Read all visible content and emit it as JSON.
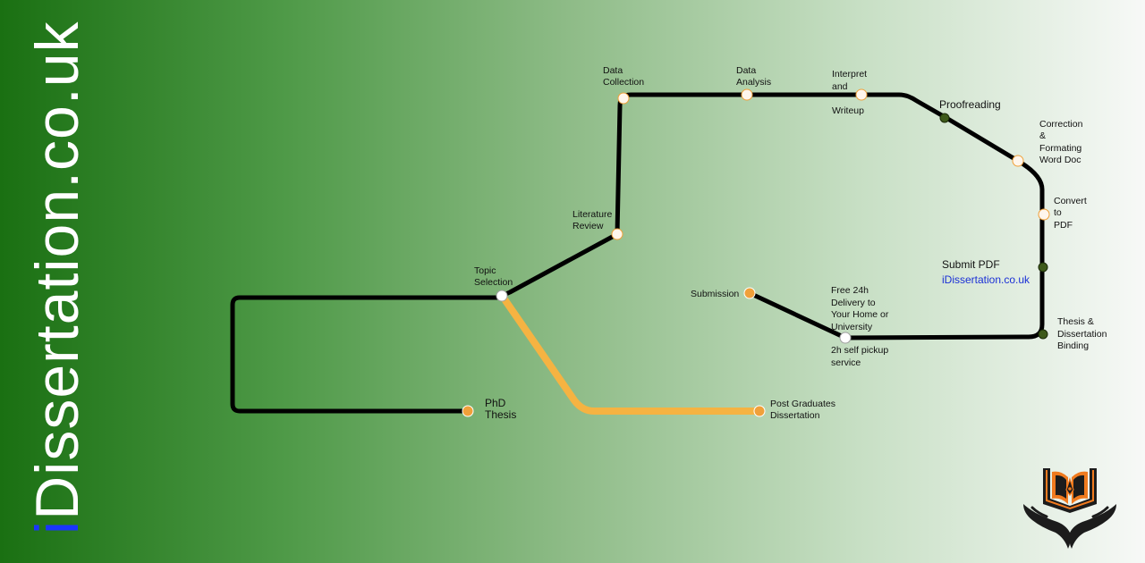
{
  "brand": {
    "prefix": "i",
    "rest": "Dissertation.co.uk"
  },
  "colors": {
    "main_line": "#000000",
    "postgrad_line": "#f5b342",
    "station_open": "#ffffff",
    "station_dark": "#3e5a1a",
    "station_orange": "#f0a03a",
    "link": "#1a2fd6"
  },
  "stations": {
    "topic_selection": [
      "Topic",
      "Selection"
    ],
    "literature_review": [
      "Literature",
      "Review"
    ],
    "data_collection": [
      "Data",
      "Collection"
    ],
    "data_analysis": [
      "Data",
      "Analysis"
    ],
    "interpret": [
      "Interpret",
      "and",
      "Writeup"
    ],
    "proofreading": "Proofreading",
    "correction": [
      "Correction",
      "&",
      "Formating",
      "Word Doc"
    ],
    "convert": [
      "Convert",
      "to",
      "PDF"
    ],
    "submit_pdf": "Submit PDF",
    "submit_link": "iDissertation.co.uk",
    "binding": [
      "Thesis &",
      "Dissertation",
      "Binding"
    ],
    "delivery": [
      "Free 24h",
      "Delivery to",
      "Your Home or",
      "University"
    ],
    "pickup": [
      "2h self pickup",
      "service"
    ],
    "submission": "Submission",
    "phd": [
      "PhD",
      "Thesis"
    ],
    "postgrad": [
      "Post Graduates",
      "Dissertation"
    ]
  },
  "logo": {
    "icon": "open-book-hands-icon"
  }
}
